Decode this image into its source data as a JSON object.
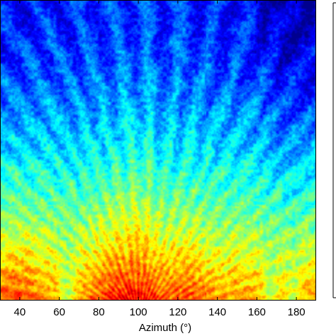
{
  "chart_data": {
    "type": "heatmap",
    "title": "",
    "xlabel": "Azimuth (°)",
    "ylabel": "",
    "xlim": [
      30,
      190
    ],
    "xticks": [
      40,
      60,
      80,
      100,
      120,
      140,
      160,
      180
    ],
    "xtick_labels": [
      "40",
      "60",
      "80",
      "100",
      "120",
      "140",
      "160",
      "180"
    ],
    "colormap": "jet",
    "colormap_stops": [
      "#00008f",
      "#0000ff",
      "#0080ff",
      "#00ffff",
      "#80ff80",
      "#ffff00",
      "#ff8000",
      "#ff0000",
      "#800000"
    ],
    "colorbar": {
      "orientation": "vertical",
      "placement": "right",
      "tick_labels": []
    },
    "description_of_field": {
      "intensity_increases_toward": "bottom",
      "peak_hotspots_azimuth": [
        40,
        85,
        100,
        105,
        125
      ],
      "striation_pattern": "fan-shaped curved streaks radiating upward from azimuth ~100"
    }
  }
}
